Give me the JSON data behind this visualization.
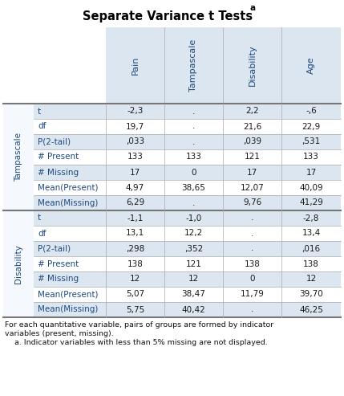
{
  "title": "Separate Variance t Tests",
  "title_superscript": "a",
  "col_headers": [
    "Pain",
    "Tampascale",
    "Disability",
    "Age"
  ],
  "row_group1_label": "Tampascale",
  "row_group2_label": "Disability",
  "row_labels": [
    "t",
    "df",
    "P(2-tail)",
    "# Present",
    "# Missing",
    "Mean(Present)",
    "Mean(Missing)"
  ],
  "group1_data": [
    [
      "-2,3",
      ".",
      "2,2",
      "-,6"
    ],
    [
      "19,7",
      ".",
      "21,6",
      "22,9"
    ],
    [
      ",033",
      ".",
      ",039",
      ",531"
    ],
    [
      "133",
      "133",
      "121",
      "133"
    ],
    [
      "17",
      "0",
      "17",
      "17"
    ],
    [
      "4,97",
      "38,65",
      "12,07",
      "40,09"
    ],
    [
      "6,29",
      ".",
      "9,76",
      "41,29"
    ]
  ],
  "group2_data": [
    [
      "-1,1",
      "-1,0",
      ".",
      "-2,8"
    ],
    [
      "13,1",
      "12,2",
      ".",
      "13,4"
    ],
    [
      ",298",
      ",352",
      ".",
      ",016"
    ],
    [
      "138",
      "121",
      "138",
      "138"
    ],
    [
      "12",
      "12",
      "0",
      "12"
    ],
    [
      "5,07",
      "38,47",
      "11,79",
      "39,70"
    ],
    [
      "5,75",
      "40,42",
      ".",
      "46,25"
    ]
  ],
  "footnote_line1": "For each quantitative variable, pairs of groups are formed by indicator",
  "footnote_line2": "variables (present, missing).",
  "footnote_line3": "a. Indicator variables with less than 5% missing are not displayed.",
  "header_bg": "#dce6f1",
  "shade_odd": "#e8f0f8",
  "shade_even": "#f5f8fc",
  "text_color_blue": "#1f497d",
  "text_color_dark": "#1a1a1a",
  "border_thick": "#777777",
  "border_thin": "#aaaaaa",
  "title_color": "#000000",
  "footnote_color": "#111111",
  "group_label_bg": "#c5d9ee",
  "white": "#ffffff"
}
